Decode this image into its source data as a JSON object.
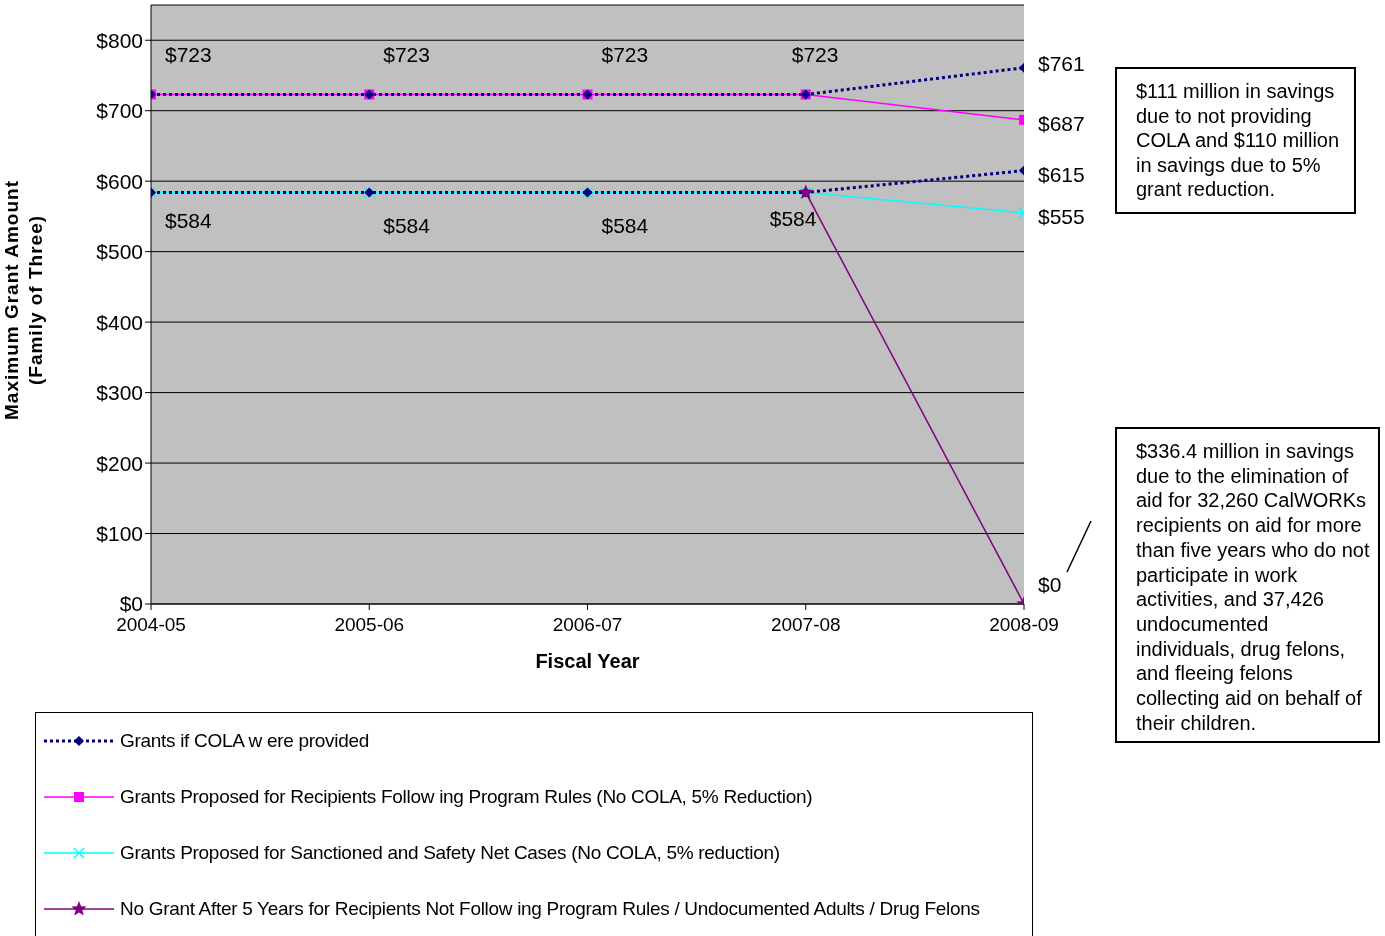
{
  "chart_data": {
    "type": "line",
    "xlabel": "Fiscal Year",
    "ylabel": "Maximum Grant Amount\n(Family of Three)",
    "categories": [
      "2004-05",
      "2005-06",
      "2006-07",
      "2007-08",
      "2008-09"
    ],
    "ylim": [
      0,
      850
    ],
    "yticks": [
      {
        "value": 0,
        "label": "$0"
      },
      {
        "value": 100,
        "label": "$100"
      },
      {
        "value": 200,
        "label": "$200"
      },
      {
        "value": 300,
        "label": "$300"
      },
      {
        "value": 400,
        "label": "$400"
      },
      {
        "value": 500,
        "label": "$500"
      },
      {
        "value": 600,
        "label": "$600"
      },
      {
        "value": 700,
        "label": "$700"
      },
      {
        "value": 800,
        "label": "$800"
      }
    ],
    "grid": "y",
    "legend": "bottom",
    "series": [
      {
        "name": "Grants if COLA w ere provided",
        "color": "#000080",
        "values": [
          723,
          723,
          723,
          723,
          761
        ],
        "marker": "diamond",
        "line_style": "dotted",
        "value_labels": [
          null,
          null,
          null,
          null,
          "$761"
        ]
      },
      {
        "color": "#000080",
        "values": [
          584,
          584,
          584,
          584,
          615
        ],
        "marker": "diamond",
        "line_style": "dotted",
        "value_labels": [
          null,
          null,
          null,
          null,
          "$615"
        ]
      },
      {
        "name": "Grants Proposed for Recipients Follow ing Program Rules (No COLA, 5% Reduction)",
        "color": "#ff00ff",
        "values": [
          723,
          723,
          723,
          723,
          687
        ],
        "marker": "square",
        "line_style": "solid",
        "value_labels": [
          "$723",
          "$723",
          "$723",
          "$723",
          "$687"
        ]
      },
      {
        "name": "Grants Proposed for Sanctioned and Safety Net Cases (No COLA, 5% reduction)",
        "color": "#00ffff",
        "values": [
          584,
          584,
          584,
          584,
          555
        ],
        "marker": "cross",
        "line_style": "solid",
        "value_labels": [
          "$584",
          "$584",
          "$584",
          "$584",
          "$555"
        ]
      },
      {
        "name": "No Grant After 5 Years for Recipients Not Follow ing Program Rules / Undocumented Adults / Drug Felons",
        "color": "#800080",
        "values": [
          null,
          null,
          null,
          584,
          0
        ],
        "marker": "star",
        "line_style": "solid",
        "value_labels": [
          null,
          null,
          null,
          null,
          "$0"
        ]
      }
    ],
    "annotations": [
      "$111 million in savings due to not providing COLA and $110 million in savings due to 5% grant reduction.",
      "$336.4 million in savings due to the elimination of aid for 32,260 CalWORKs recipients on aid for more than five years who do not participate in work activities, and 37,426 undocumented individuals, drug felons, and fleeing felons collecting aid on behalf of their children."
    ]
  }
}
